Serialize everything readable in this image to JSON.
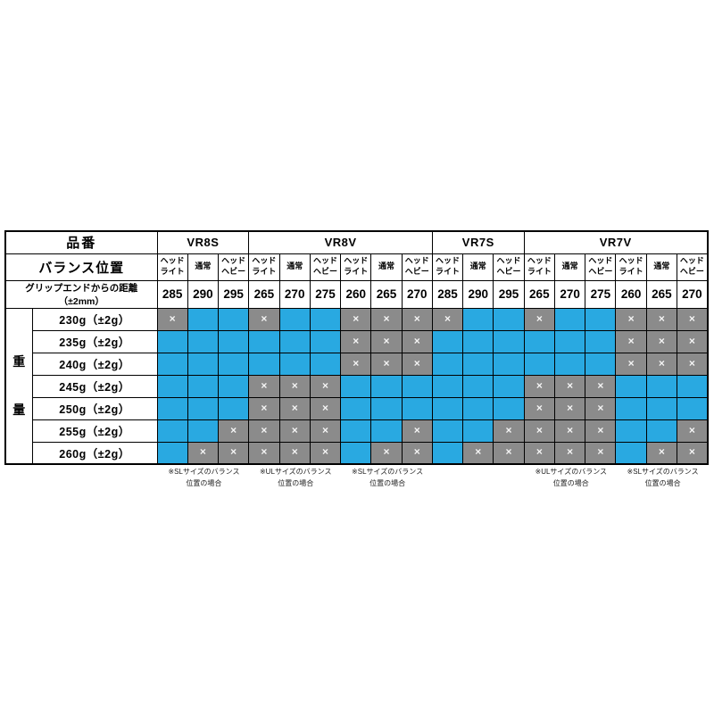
{
  "chart_data": {
    "type": "table",
    "title": "",
    "header": {
      "product_label": "品番",
      "balance_label": "バランス位置",
      "distance_label": "グリップエンドからの距離（±2mm）",
      "weight_axis_chars": [
        "重",
        "量"
      ]
    },
    "col_groups": [
      {
        "label": "VR8S",
        "span": 3
      },
      {
        "label": "VR8V",
        "span": 6
      },
      {
        "label": "VR7S",
        "span": 3
      },
      {
        "label": "VR7V",
        "span": 6
      }
    ],
    "balance_cols": [
      "ヘッド\nライト",
      "通常",
      "ヘッド\nヘビー",
      "ヘッド\nライト",
      "通常",
      "ヘッド\nヘビー",
      "ヘッド\nライト",
      "通常",
      "ヘッド\nヘビー",
      "ヘッド\nライト",
      "通常",
      "ヘッド\nヘビー",
      "ヘッド\nライト",
      "通常",
      "ヘッド\nヘビー",
      "ヘッド\nライト",
      "通常",
      "ヘッド\nヘビー"
    ],
    "distance_values": [
      "285",
      "290",
      "295",
      "265",
      "270",
      "275",
      "260",
      "265",
      "270",
      "285",
      "290",
      "295",
      "265",
      "270",
      "275",
      "260",
      "265",
      "270"
    ],
    "weight_rows": [
      {
        "label": "230g（±2g）",
        "cells": [
          "x",
          "o",
          "o",
          "x",
          "o",
          "o",
          "x",
          "x",
          "x",
          "x",
          "o",
          "o",
          "x",
          "o",
          "o",
          "x",
          "x",
          "x"
        ]
      },
      {
        "label": "235g（±2g）",
        "cells": [
          "o",
          "o",
          "o",
          "o",
          "o",
          "o",
          "x",
          "x",
          "x",
          "o",
          "o",
          "o",
          "o",
          "o",
          "o",
          "x",
          "x",
          "x"
        ]
      },
      {
        "label": "240g（±2g）",
        "cells": [
          "o",
          "o",
          "o",
          "o",
          "o",
          "o",
          "x",
          "x",
          "x",
          "o",
          "o",
          "o",
          "o",
          "o",
          "o",
          "x",
          "x",
          "x"
        ]
      },
      {
        "label": "245g（±2g）",
        "cells": [
          "o",
          "o",
          "o",
          "x",
          "x",
          "x",
          "o",
          "o",
          "o",
          "o",
          "o",
          "o",
          "x",
          "x",
          "x",
          "o",
          "o",
          "o"
        ]
      },
      {
        "label": "250g（±2g）",
        "cells": [
          "o",
          "o",
          "o",
          "x",
          "x",
          "x",
          "o",
          "o",
          "o",
          "o",
          "o",
          "o",
          "x",
          "x",
          "x",
          "o",
          "o",
          "o"
        ]
      },
      {
        "label": "255g（±2g）",
        "cells": [
          "o",
          "o",
          "x",
          "x",
          "x",
          "x",
          "o",
          "o",
          "x",
          "o",
          "o",
          "x",
          "x",
          "x",
          "x",
          "o",
          "o",
          "x"
        ]
      },
      {
        "label": "260g（±2g）",
        "cells": [
          "o",
          "x",
          "x",
          "x",
          "x",
          "x",
          "o",
          "x",
          "x",
          "o",
          "x",
          "x",
          "x",
          "x",
          "x",
          "o",
          "x",
          "x"
        ]
      }
    ],
    "cross_glyph": "×",
    "notes": [
      {
        "lines": "※SLサイズのバランス\n位置の場合",
        "col_start": 0,
        "col_span": 3
      },
      {
        "lines": "※ULサイズのバランス\n位置の場合",
        "col_start": 3,
        "col_span": 3
      },
      {
        "lines": "※SLサイズのバランス\n位置の場合",
        "col_start": 6,
        "col_span": 3
      },
      {
        "lines": "※ULサイズのバランス\n位置の場合",
        "col_start": 12,
        "col_span": 3
      },
      {
        "lines": "※SLサイズのバランス\n位置の場合",
        "col_start": 15,
        "col_span": 3
      }
    ],
    "colors": {
      "available_blue": "#29A9E1",
      "excluded_gray": "#8B8B8B",
      "cross_white": "#F4F4F4",
      "border_black": "#000000"
    },
    "layout_hints": {
      "axis_col_width": 30,
      "label_col_width": 140,
      "data_col_width": 34.28,
      "group_separator_cols": [
        0,
        3,
        9,
        12
      ]
    }
  }
}
